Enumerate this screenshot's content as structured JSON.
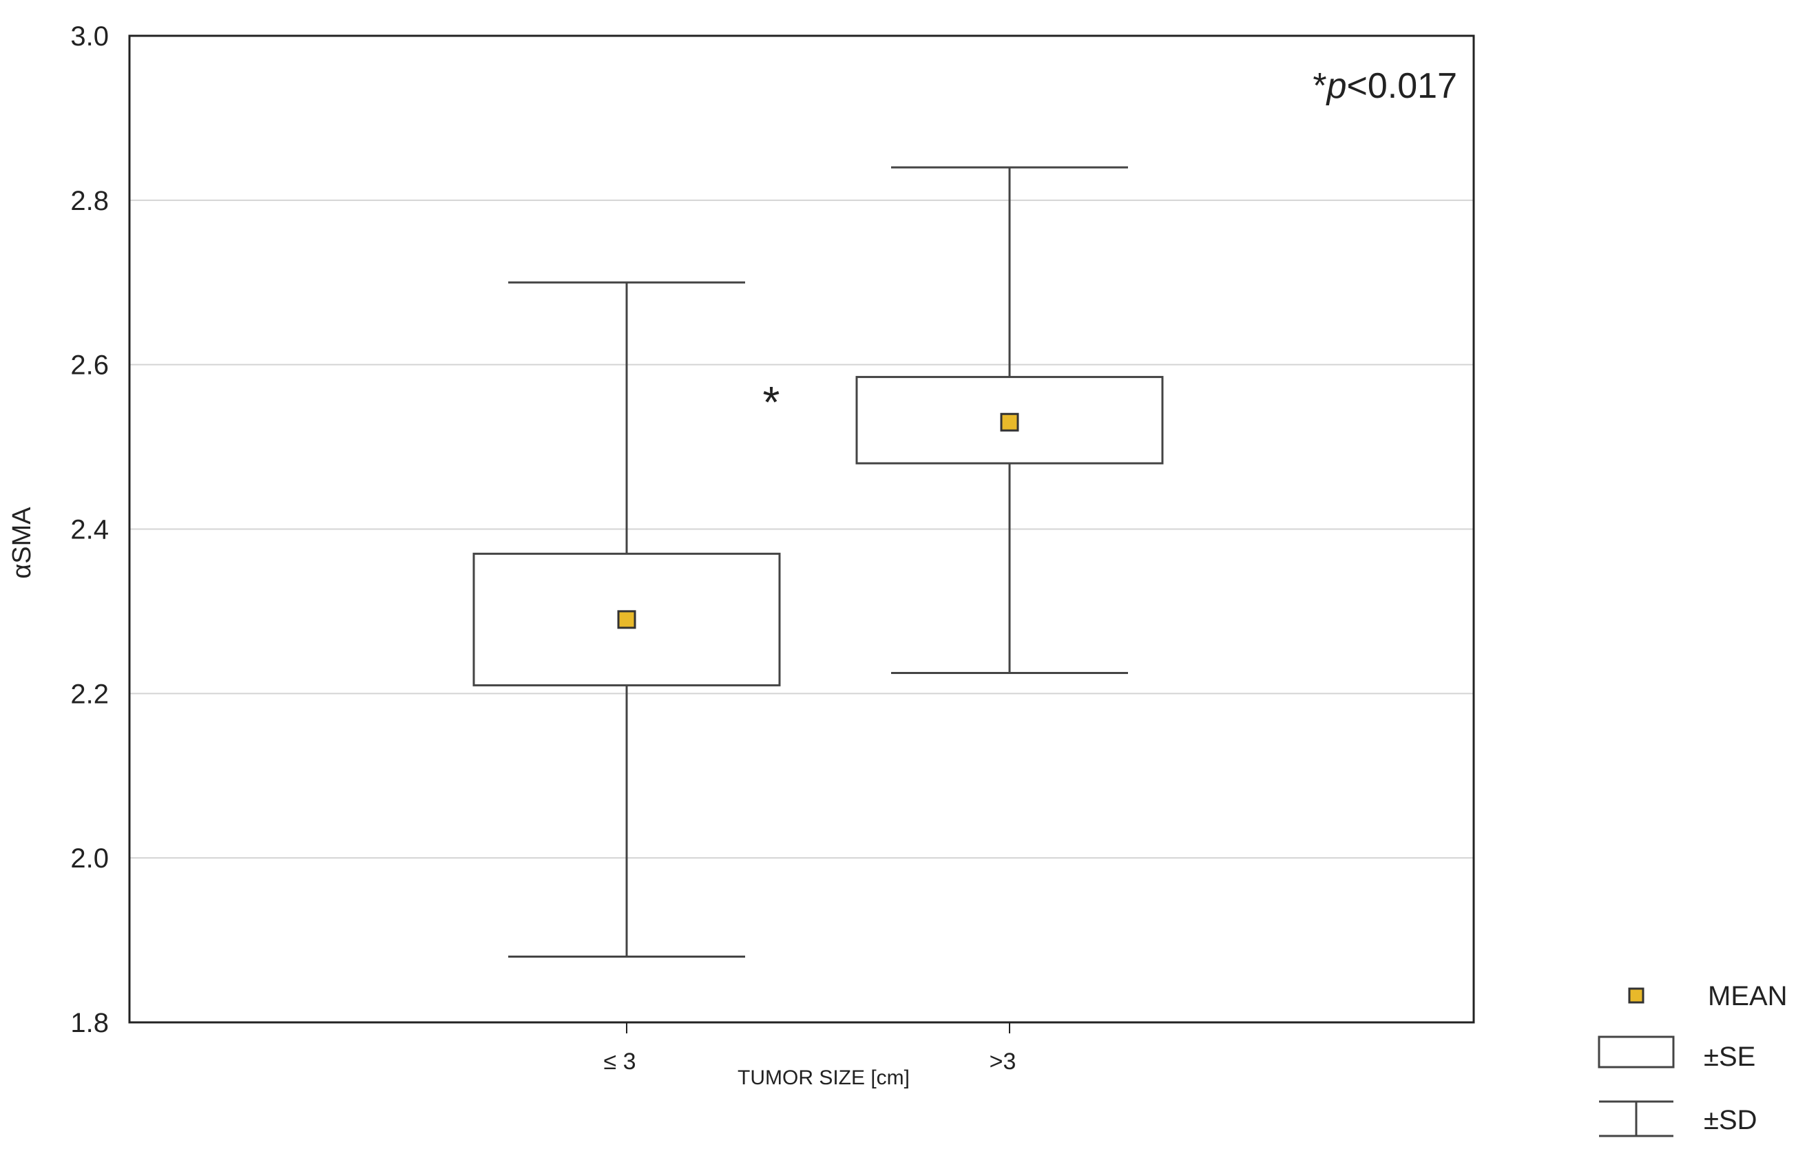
{
  "chart_data": {
    "type": "boxplot",
    "xlabel": "TUMOR SIZE [cm]",
    "ylabel": "αSMA",
    "ylim": [
      1.8,
      3.0
    ],
    "yticks": [
      1.8,
      2.0,
      2.2,
      2.4,
      2.6,
      2.8,
      3.0
    ],
    "ytick_labels": [
      "1.8",
      "2.0",
      "2.2",
      "2.4",
      "2.6",
      "2.8",
      "3.0"
    ],
    "grid": true,
    "categories": [
      "≤ 3",
      ">3"
    ],
    "groups": [
      {
        "category": "≤ 3",
        "mean": 2.29,
        "se_low": 2.21,
        "se_high": 2.37,
        "sd_low": 1.88,
        "sd_high": 2.7
      },
      {
        "category": ">3",
        "mean": 2.53,
        "se_low": 2.48,
        "se_high": 2.585,
        "sd_low": 2.225,
        "sd_high": 2.84
      }
    ],
    "annotation": {
      "prefix": "*",
      "p": "p",
      "rest": "<0.017"
    },
    "significance_marker": "*",
    "legend_position": "bottom-right",
    "legend": [
      {
        "key": "mean",
        "label": "MEAN"
      },
      {
        "key": "se",
        "label": "±SE"
      },
      {
        "key": "sd",
        "label": "±SD"
      }
    ],
    "colors": {
      "mean_fill": "#e8b92a",
      "mean_stroke": "#333333",
      "axis": "#222222",
      "grid": "#d4d4d4",
      "box_stroke": "#444444",
      "whisker": "#444444"
    }
  }
}
